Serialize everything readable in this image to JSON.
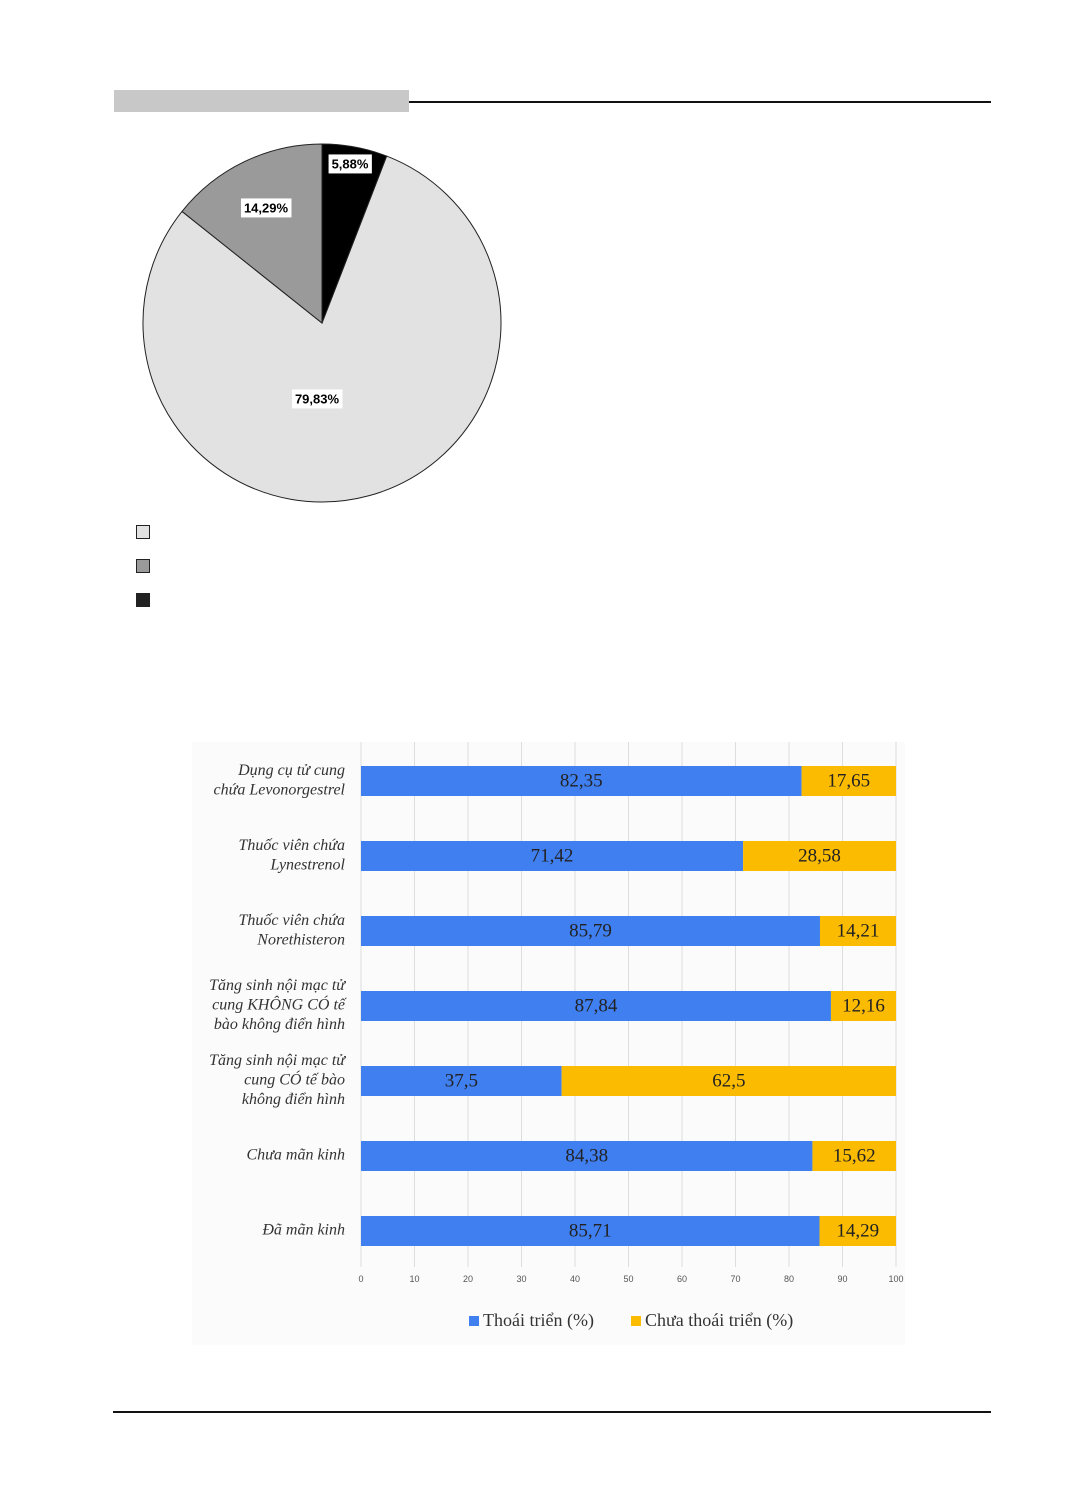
{
  "colors": {
    "pie": [
      "#e2e2e2",
      "#9a9a9a",
      "#000000"
    ],
    "bar_series": [
      "#3f7ff0",
      "#fbbb00"
    ],
    "grid": "#dddddd"
  },
  "chart_data": [
    {
      "type": "pie",
      "title": "",
      "slices": [
        {
          "label": "",
          "value": 79.83,
          "value_label": "79,83%"
        },
        {
          "label": "",
          "value": 14.29,
          "value_label": "14,29%"
        },
        {
          "label": "",
          "value": 5.88,
          "value_label": "5,88%"
        }
      ],
      "legend": [
        "",
        "",
        ""
      ],
      "legend_position": "bottom-left"
    },
    {
      "type": "bar",
      "orientation": "horizontal",
      "stacked": true,
      "categories": [
        [
          "Dụng cụ tử cung",
          "chứa Levonorgestrel"
        ],
        [
          "Thuốc viên chứa",
          "Lynestrenol"
        ],
        [
          "Thuốc viên chứa",
          "Norethisteron"
        ],
        [
          "Tăng sinh nội mạc tử",
          "cung KHÔNG CÓ tế",
          "bào không điển hình"
        ],
        [
          "Tăng sinh nội mạc tử",
          "cung CÓ tế bào",
          "không điển hình"
        ],
        [
          "Chưa mãn kinh"
        ],
        [
          "Đã mãn kinh"
        ]
      ],
      "series": [
        {
          "name": "Thoái triển (%)",
          "values": [
            82.35,
            71.42,
            85.79,
            87.84,
            37.5,
            84.38,
            85.71
          ],
          "value_labels": [
            "82,35",
            "71,42",
            "85,79",
            "87,84",
            "37,5",
            "84,38",
            "85,71"
          ]
        },
        {
          "name": "Chưa thoái triển (%)",
          "values": [
            17.65,
            28.58,
            14.21,
            12.16,
            62.5,
            15.62,
            14.29
          ],
          "value_labels": [
            "17,65",
            "28,58",
            "14,21",
            "12,16",
            "62,5",
            "15,62",
            "14,29"
          ]
        }
      ],
      "xlim": [
        0,
        100
      ],
      "xticks": [
        "0",
        "10",
        "20",
        "30",
        "40",
        "50",
        "60",
        "70",
        "80",
        "90",
        "100"
      ],
      "grid": true,
      "legend_position": "bottom"
    }
  ]
}
